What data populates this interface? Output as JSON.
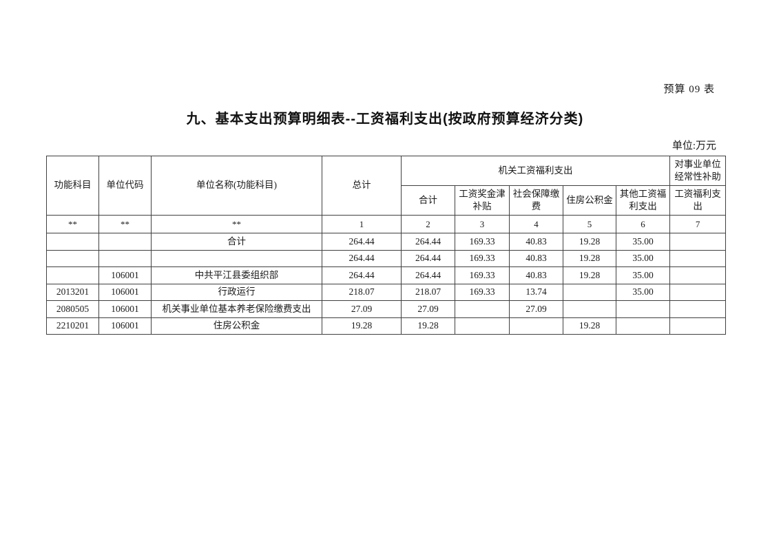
{
  "page": {
    "sheet_label": "预算 09 表",
    "title": "九、基本支出预算明细表--工资福利支出(按政府预算经济分类)",
    "unit_label": "单位:万元"
  },
  "table": {
    "header": {
      "func_subject": "功能科目",
      "unit_code": "单位代码",
      "unit_name": "单位名称(功能科目)",
      "total": "总计",
      "agency_group": "机关工资福利支出",
      "subsidy_group": "对事业单位经常性补助",
      "sub_total": "合计",
      "bonus_allowance": "工资奖金津补贴",
      "social_security": "社会保障缴费",
      "housing_fund": "住房公积金",
      "other_welfare": "其他工资福利支出",
      "welfare_expense": "工资福利支出"
    },
    "index_row": [
      "**",
      "**",
      "**",
      "1",
      "2",
      "3",
      "4",
      "5",
      "6",
      "7"
    ],
    "rows": [
      [
        "",
        "",
        "合计",
        "264.44",
        "264.44",
        "169.33",
        "40.83",
        "19.28",
        "35.00",
        ""
      ],
      [
        "",
        "",
        "",
        "264.44",
        "264.44",
        "169.33",
        "40.83",
        "19.28",
        "35.00",
        ""
      ],
      [
        "",
        "106001",
        "中共平江县委组织部",
        "264.44",
        "264.44",
        "169.33",
        "40.83",
        "19.28",
        "35.00",
        ""
      ],
      [
        "2013201",
        "106001",
        "行政运行",
        "218.07",
        "218.07",
        "169.33",
        "13.74",
        "",
        "35.00",
        ""
      ],
      [
        "2080505",
        "106001",
        "机关事业单位基本养老保险缴费支出",
        "27.09",
        "27.09",
        "",
        "27.09",
        "",
        "",
        ""
      ],
      [
        "2210201",
        "106001",
        "住房公积金",
        "19.28",
        "19.28",
        "",
        "",
        "19.28",
        "",
        ""
      ]
    ]
  }
}
